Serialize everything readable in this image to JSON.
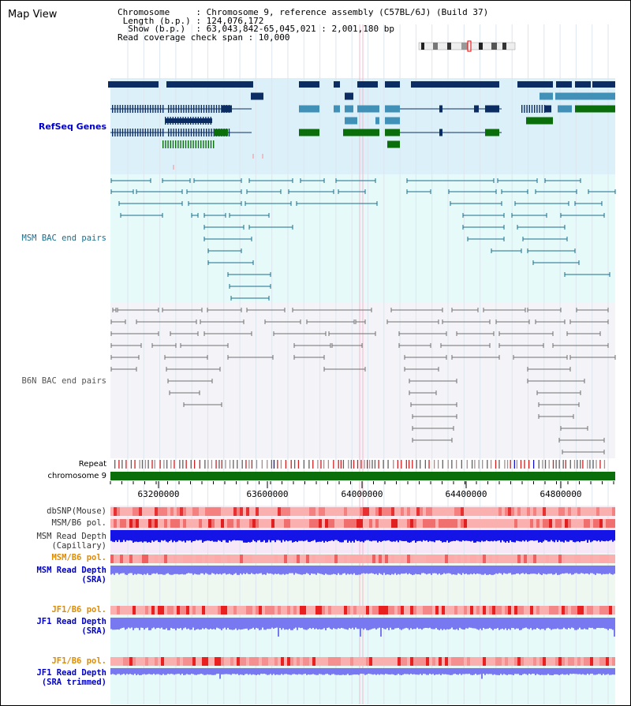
{
  "app": {
    "title": "Map View"
  },
  "header": {
    "chromosome": "Chromosome     : Chromosome 9, reference assembly (C57BL/6J) (Build 37)",
    "length": " Length (b.p.) : 124,076,172",
    "show": "  Show (b.p.)  : 63,043,842-65,045,021 : 2,001,180 bp",
    "coverage": "Read coverage check span : 10,000"
  },
  "tracks": {
    "refseq": "RefSeq Genes",
    "msm_bac": "MSM BAC end pairs",
    "b6n_bac": "B6N BAC end pairs",
    "repeat": "Repeat",
    "chrom": "chromosome 9",
    "dbsnp": "dbSNP(Mouse)",
    "msm_b6_pol_1": "MSM/B6 pol.",
    "msm_depth_cap": "MSM Read Depth\n(Capillary)",
    "msm_b6_pol_2": "MSM/B6 pol.",
    "msm_depth_sra": "MSM Read Depth\n(SRA)",
    "jf1_pol_1": "JF1/B6 pol.",
    "jf1_depth_sra": "JF1 Read Depth\n(SRA)",
    "jf1_pol_2": "JF1/B6 pol.",
    "jf1_depth_trim": "JF1 Read Depth\n(SRA trimmed)"
  },
  "axis": {
    "ticks": [
      "63200000",
      "63600000",
      "64000000",
      "64400000",
      "64800000"
    ]
  },
  "colors": {
    "refseq_bg": "#dcf0fa",
    "bac_bg": "#e6fafa",
    "b6n_bg": "#f4f4f8",
    "gene_dark": "#0c2d64",
    "gene_mid": "#4090b8",
    "gene_green": "#0a6e0a",
    "msm_line": "#1a6e8c",
    "b6n_line": "#707070",
    "chrom_green": "#0a6e0a",
    "depth_blue": "#1414e6",
    "depth_light": "#7878f0"
  }
}
